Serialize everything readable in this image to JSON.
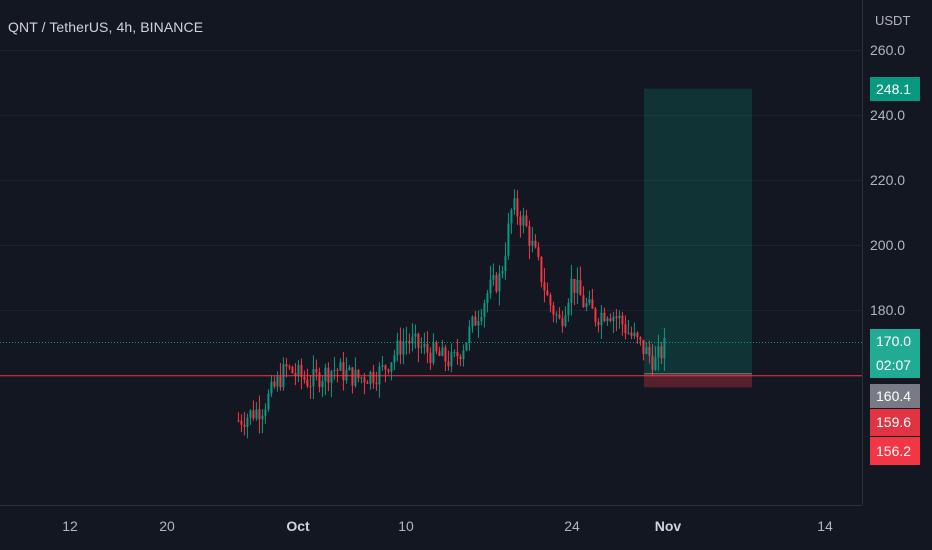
{
  "header": {
    "title": "QNT / TetherUS, 4h, BINANCE",
    "unit": "USDT"
  },
  "chart_data": {
    "type": "candlestick",
    "symbol": "QNT / TetherUS",
    "timeframe": "4h",
    "exchange": "BINANCE",
    "y_axis": {
      "unit": "USDT",
      "ticks": [
        "260.0",
        "240.0",
        "220.0",
        "200.0",
        "180.0"
      ],
      "range": [
        145,
        262
      ]
    },
    "x_axis": {
      "ticks": [
        "12",
        "20",
        "Oct",
        "10",
        "24",
        "Nov",
        "14"
      ]
    },
    "approx_close_series": [
      {
        "date": "Sep 26",
        "price": 146
      },
      {
        "date": "Sep 28",
        "price": 150
      },
      {
        "date": "Sep 30",
        "price": 162
      },
      {
        "date": "Oct 02",
        "price": 158
      },
      {
        "date": "Oct 04",
        "price": 162
      },
      {
        "date": "Oct 06",
        "price": 159
      },
      {
        "date": "Oct 08",
        "price": 161
      },
      {
        "date": "Oct 10",
        "price": 171
      },
      {
        "date": "Oct 12",
        "price": 167
      },
      {
        "date": "Oct 14",
        "price": 164
      },
      {
        "date": "Oct 15",
        "price": 170
      },
      {
        "date": "Oct 16",
        "price": 178
      },
      {
        "date": "Oct 17",
        "price": 186
      },
      {
        "date": "Oct 18",
        "price": 190
      },
      {
        "date": "Oct 19",
        "price": 212
      },
      {
        "date": "Oct 20",
        "price": 207
      },
      {
        "date": "Oct 21",
        "price": 196
      },
      {
        "date": "Oct 22",
        "price": 183
      },
      {
        "date": "Oct 23",
        "price": 176
      },
      {
        "date": "Oct 24",
        "price": 189
      },
      {
        "date": "Oct 25",
        "price": 182
      },
      {
        "date": "Oct 26",
        "price": 178
      },
      {
        "date": "Oct 27",
        "price": 180
      },
      {
        "date": "Oct 28",
        "price": 177
      },
      {
        "date": "Oct 29",
        "price": 172
      },
      {
        "date": "Oct 30",
        "price": 168
      },
      {
        "date": "Oct 31",
        "price": 164
      },
      {
        "date": "Nov 01",
        "price": 170
      }
    ],
    "long_position": {
      "take_profit": "248.1",
      "stop": "156.2"
    },
    "price_labels": [
      {
        "value": "248.1",
        "color": "#089981"
      },
      {
        "value": "170.0",
        "color": "#22ab94"
      },
      {
        "value": "02:07",
        "color": "#22ab94"
      },
      {
        "value": "160.4",
        "color": "#787b86"
      },
      {
        "value": "159.6",
        "color": "#e13443"
      },
      {
        "value": "156.2",
        "color": "#f23645"
      }
    ],
    "horizontal_line": {
      "price": 160.4,
      "color": "#f23645"
    },
    "colors": {
      "up": "#089981",
      "down": "#f23645",
      "background": "#131722",
      "grid": "#1f2330"
    }
  }
}
